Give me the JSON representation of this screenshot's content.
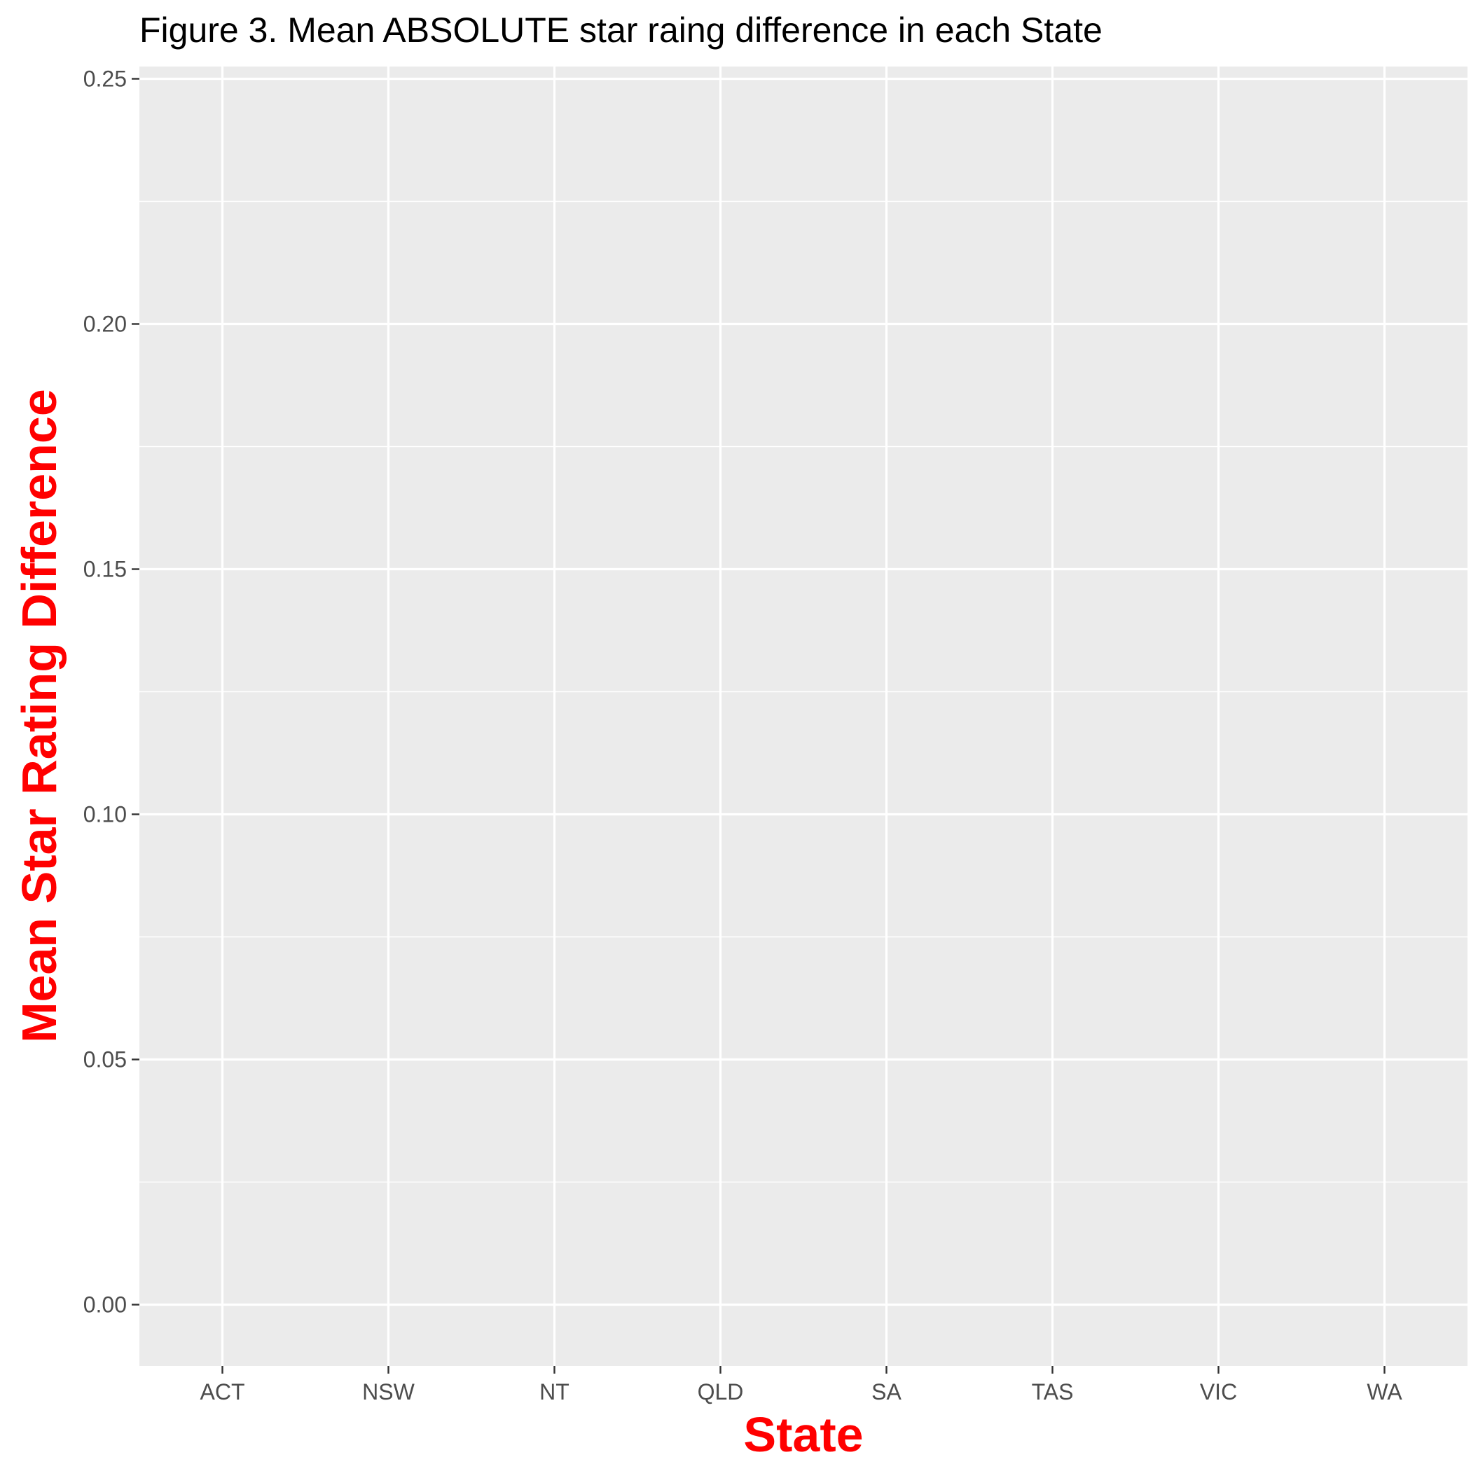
{
  "chart_data": {
    "type": "bar",
    "title": "Figure 3. Mean ABSOLUTE star raing difference in each State",
    "xlabel": "State",
    "ylabel": "Mean Star Rating Difference",
    "categories": [
      "ACT",
      "NSW",
      "NT",
      "QLD",
      "SA",
      "TAS",
      "VIC",
      "WA"
    ],
    "values": [
      0,
      0,
      0,
      0,
      0,
      0,
      0,
      0
    ],
    "ylim": [
      -0.0125,
      0.2525
    ],
    "yticks": [
      0.0,
      0.05,
      0.1,
      0.15,
      0.2,
      0.25
    ],
    "ytick_labels": [
      "0.00",
      "0.05",
      "0.10",
      "0.15",
      "0.20",
      "0.25"
    ],
    "grid": true,
    "legend": "none",
    "colors": {
      "panel_background": "#EBEBEB",
      "grid": "#FFFFFF",
      "axis_title": "#FF0000",
      "tick_label": "#4D4D4D",
      "title": "#000000"
    }
  }
}
